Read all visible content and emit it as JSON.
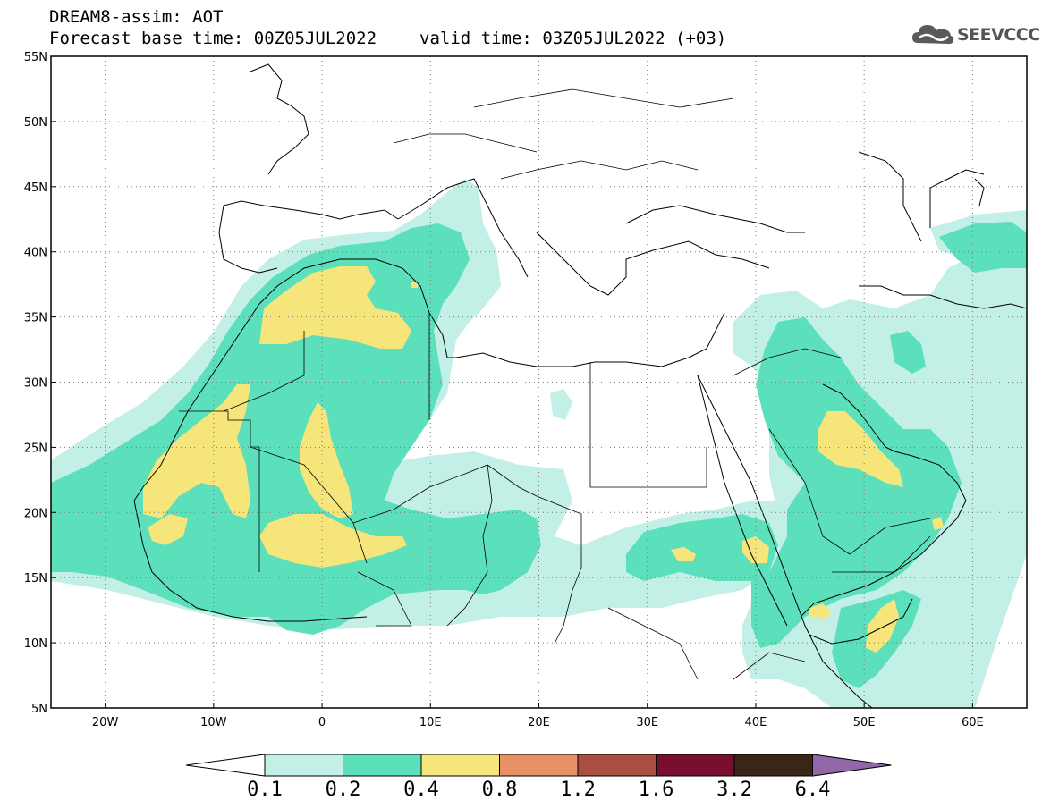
{
  "header": {
    "line1": "DREAM8-assim: AOT",
    "base_time": "Forecast base time: 00Z05JUL2022",
    "valid_time": "valid time: 03Z05JUL2022 (+03)"
  },
  "logo": {
    "text": "SEEVCCC",
    "icon": "cloud-logo-icon",
    "color": "#555555"
  },
  "map": {
    "lon_range": [
      -25,
      65
    ],
    "lat_range": [
      5,
      55
    ],
    "lat_labels": [
      "55N",
      "50N",
      "45N",
      "40N",
      "35N",
      "30N",
      "25N",
      "20N",
      "15N",
      "10N",
      "5N"
    ],
    "lon_labels": [
      "20W",
      "10W",
      "0",
      "10E",
      "20E",
      "30E",
      "40E",
      "50E",
      "60E"
    ],
    "grid": true
  },
  "colorbar": {
    "labels": [
      "0.1",
      "0.2",
      "0.4",
      "0.8",
      "1.2",
      "1.6",
      "3.2",
      "6.4"
    ],
    "colors": [
      "#ffffff",
      "#c2efe6",
      "#5ce0bc",
      "#f5e57a",
      "#e89066",
      "#a84e42",
      "#7a0e2e",
      "#3b2418",
      "#9068a8"
    ]
  }
}
